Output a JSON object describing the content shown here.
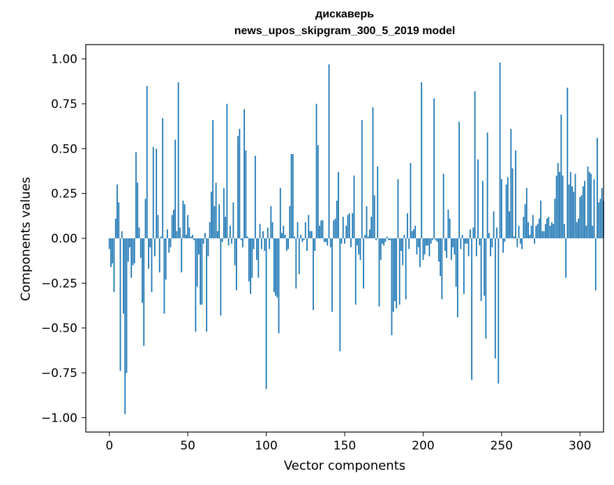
{
  "chart_data": {
    "type": "bar",
    "title": "дискаверь",
    "subtitle": "news_upos_skipgram_300_5_2019 model",
    "xlabel": "Vector components",
    "ylabel": "Components values",
    "xlim": [
      -15,
      315
    ],
    "ylim": [
      -1.08,
      1.08
    ],
    "xticks": [
      0,
      50,
      100,
      150,
      200,
      250,
      300
    ],
    "yticks": [
      1.0,
      0.75,
      0.5,
      0.25,
      0.0,
      -0.25,
      -0.5,
      -0.75,
      -1.0
    ],
    "ytick_labels": [
      "1.00",
      "0.75",
      "0.50",
      "0.25",
      "0.00",
      "−0.25",
      "−0.50",
      "−0.75",
      "−1.00"
    ],
    "grid": false,
    "bar_color": "#1f77b4",
    "values": [
      -0.06,
      -0.16,
      -0.14,
      -0.3,
      0.11,
      0.3,
      0.2,
      -0.74,
      0.04,
      -0.42,
      -0.98,
      -0.75,
      -0.13,
      -0.05,
      -0.22,
      -0.15,
      -0.14,
      0.48,
      0.31,
      0.06,
      -0.11,
      -0.36,
      -0.6,
      0.22,
      0.85,
      -0.17,
      -0.05,
      -0.3,
      0.51,
      -0.1,
      0.5,
      0.13,
      -0.19,
      0.01,
      0.67,
      -0.42,
      -0.23,
      0.05,
      -0.08,
      -0.05,
      0.13,
      0.16,
      0.55,
      0.04,
      0.87,
      0.06,
      -0.19,
      0.21,
      0.19,
      0.02,
      0.13,
      0.06,
      0.01,
      0.02,
      -0.01,
      -0.52,
      -0.27,
      -0.09,
      -0.37,
      -0.37,
      -0.03,
      0.03,
      -0.52,
      -0.1,
      0.09,
      0.26,
      0.66,
      0.18,
      0.31,
      0.04,
      0.19,
      -0.43,
      -0.02,
      0.28,
      0.12,
      0.75,
      -0.04,
      0.07,
      -0.03,
      0.2,
      -0.15,
      -0.29,
      0.57,
      0.61,
      -0.01,
      -0.05,
      0.72,
      0.49,
      0.01,
      -0.24,
      -0.31,
      -0.22,
      -0.06,
      0.46,
      -0.12,
      -0.22,
      0.08,
      -0.06,
      0.04,
      -0.07,
      -0.84,
      0.06,
      -0.06,
      0.18,
      0.09,
      -0.3,
      -0.32,
      -0.33,
      -0.53,
      0.28,
      0.03,
      0.07,
      0.02,
      -0.07,
      -0.06,
      0.18,
      0.47,
      0.47,
      0.01,
      -0.28,
      0.09,
      -0.2,
      0.02,
      -0.02,
      -0.01,
      0.09,
      -0.07,
      0.13,
      0.04,
      0.04,
      -0.4,
      -0.07,
      0.75,
      0.52,
      0.07,
      0.1,
      0.1,
      -0.02,
      -0.02,
      -0.04,
      0.97,
      -0.05,
      -0.41,
      0.1,
      0.11,
      0.21,
      0.37,
      -0.63,
      -0.03,
      0.12,
      -0.03,
      0.07,
      0.13,
      0.14,
      -0.05,
      0.14,
      0.35,
      -0.37,
      -0.04,
      -0.09,
      -0.12,
      0.66,
      -0.28,
      0.02,
      0.18,
      0.01,
      0.05,
      0.12,
      0.73,
      0.24,
      -0.01,
      0.4,
      -0.38,
      -0.12,
      -0.03,
      -0.04,
      -0.02,
      0.01,
      -0.01,
      -0.01,
      -0.54,
      -0.41,
      -0.35,
      -0.39,
      0.33,
      -0.37,
      -0.07,
      -0.15,
      0.02,
      -0.34,
      0.14,
      -0.06,
      0.42,
      0.04,
      0.05,
      0.07,
      -0.09,
      -0.05,
      -0.16,
      0.87,
      -0.12,
      -0.09,
      -0.04,
      -0.04,
      -0.1,
      -0.03,
      -0.01,
      0.78,
      -0.01,
      -0.02,
      -0.13,
      -0.21,
      -0.34,
      0.36,
      -0.07,
      -0.11,
      0.16,
      0.11,
      -0.12,
      -0.05,
      -0.09,
      -0.27,
      -0.44,
      0.65,
      -0.06,
      0.02,
      -0.31,
      -0.03,
      -0.03,
      -0.1,
      0.05,
      -0.79,
      0.06,
      0.82,
      -0.1,
      0.44,
      -0.04,
      -0.35,
      0.32,
      -0.32,
      -0.56,
      0.59,
      0.03,
      -0.1,
      -0.05,
      0.15,
      -0.67,
      0.06,
      -0.81,
      0.98,
      0.33,
      -0.08,
      -0.02,
      0.3,
      0.34,
      0.15,
      0.61,
      0.39,
      0.01,
      0.49,
      -0.05,
      0.07,
      -0.03,
      -0.06,
      0.12,
      0.19,
      0.28,
      0.09,
      0.02,
      0.07,
      0.13,
      -0.03,
      0.07,
      0.08,
      0.11,
      0.21,
      0.04,
      0.04,
      0.08,
      0.11,
      0.12,
      0.07,
      0.09,
      0.08,
      0.22,
      0.35,
      0.42,
      0.37,
      0.69,
      0.35,
      0.08,
      -0.22,
      0.84,
      0.3,
      0.37,
      0.29,
      0.26,
      0.36,
      0.09,
      0.11,
      0.23,
      0.24,
      0.29,
      0.32,
      0.07,
      0.4,
      0.37,
      0.36,
      0.07,
      0.33,
      -0.29,
      0.56,
      0.2,
      0.22,
      0.28,
      0.21
    ]
  }
}
